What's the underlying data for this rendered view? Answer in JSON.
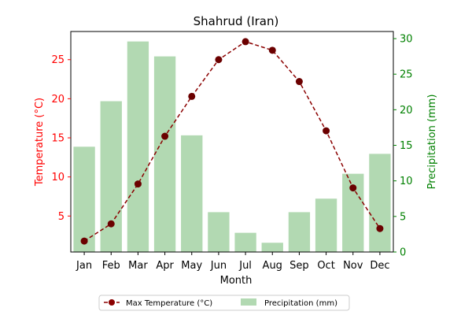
{
  "chart_data": {
    "type": "bar+line",
    "title": "Shahrud (Iran)",
    "xlabel": "Month",
    "ylabel_left": "Temperature (°C)",
    "ylabel_right": "Precipitation (mm)",
    "categories": [
      "Jan",
      "Feb",
      "Mar",
      "Apr",
      "May",
      "Jun",
      "Jul",
      "Aug",
      "Sep",
      "Oct",
      "Nov",
      "Dec"
    ],
    "left_axis": {
      "ylim": [
        0.4,
        28.6
      ],
      "ticks": [
        5,
        10,
        15,
        20,
        25
      ]
    },
    "right_axis": {
      "ylim": [
        0,
        31
      ],
      "ticks": [
        0,
        5,
        10,
        15,
        20,
        25,
        30
      ]
    },
    "series": [
      {
        "name": "Max Temperature (°C)",
        "type": "line",
        "axis": "left",
        "color": "#8b0000",
        "line_style": "dashed",
        "marker": "circle",
        "values": [
          1.8,
          4.0,
          9.1,
          15.2,
          20.3,
          25.0,
          27.3,
          26.2,
          22.2,
          15.9,
          8.6,
          3.4
        ]
      },
      {
        "name": "Precipitation (mm)",
        "type": "bar",
        "axis": "right",
        "color": "#b2d9b2",
        "values": [
          14.8,
          21.2,
          29.6,
          27.5,
          16.4,
          5.6,
          2.7,
          1.3,
          5.6,
          7.5,
          11.0,
          13.8
        ]
      }
    ],
    "legend": {
      "position": "bottom-center",
      "columns": 2
    },
    "colors": {
      "left_axis": "#ff0000",
      "right_axis": "#008000"
    },
    "grid": false
  }
}
